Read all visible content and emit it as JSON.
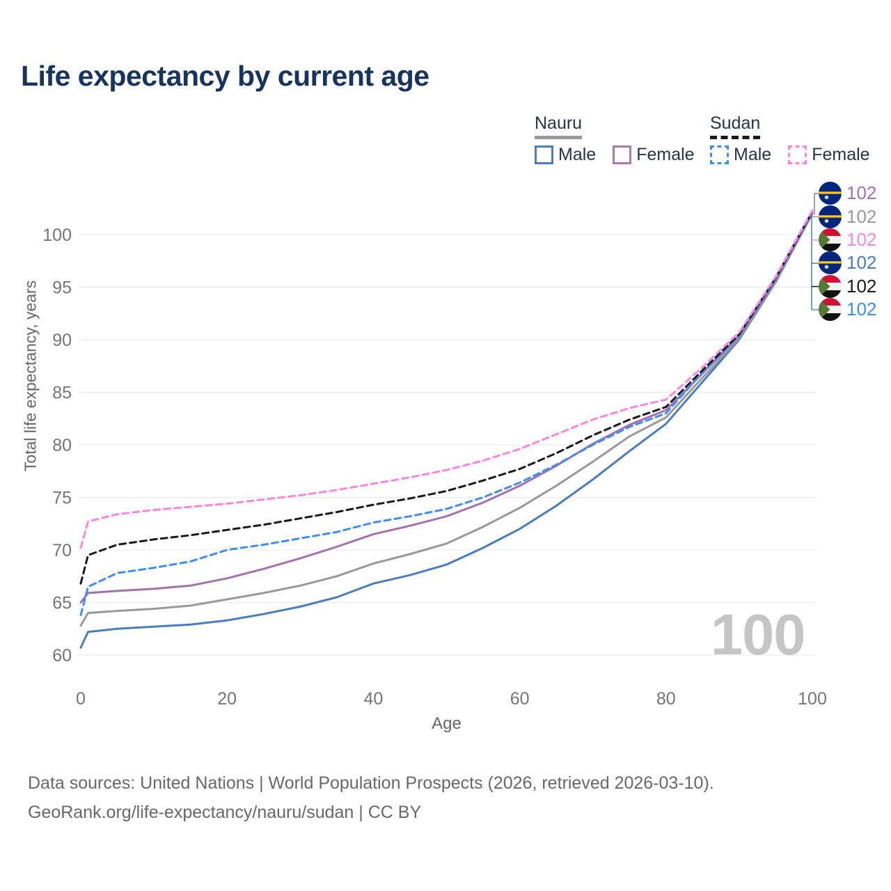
{
  "title": "Life expectancy by current age",
  "legend": {
    "groups": [
      {
        "label": "Nauru",
        "underline_style": "solid",
        "underline_color": "#999999",
        "items": [
          {
            "label": "Male",
            "color": "#4a7cc0",
            "dashed": false
          },
          {
            "label": "Female",
            "color": "#b077b3",
            "dashed": false
          }
        ]
      },
      {
        "label": "Sudan",
        "underline_style": "dashed",
        "underline_color": "#1a1a1a",
        "items": [
          {
            "label": "Male",
            "color": "#3d8ef5",
            "dashed": true
          },
          {
            "label": "Female",
            "color": "#ff85e0",
            "dashed": true
          }
        ]
      }
    ]
  },
  "chart_data": {
    "type": "line",
    "title": "Life expectancy by current age",
    "xlabel": "Age",
    "ylabel": "Total life expectancy, years",
    "xticks": [
      0,
      20,
      40,
      60,
      80,
      100
    ],
    "yticks": [
      60,
      65,
      70,
      75,
      80,
      85,
      90,
      95,
      100
    ],
    "xlim": [
      0,
      100
    ],
    "ylim": [
      58.5,
      103
    ],
    "grid": "horizontal",
    "hover_age_label": "100",
    "x": [
      0,
      1,
      5,
      10,
      15,
      20,
      25,
      30,
      35,
      40,
      45,
      50,
      55,
      60,
      65,
      70,
      75,
      80,
      85,
      90,
      95,
      100
    ],
    "series": [
      {
        "id": "nauru-male",
        "name": "Nauru Male",
        "country": "Nauru",
        "sex": "Male",
        "flag": "nauru-flag",
        "color": "#4a7cc0",
        "dashed": false,
        "end_label": "102",
        "values": [
          60.7,
          62.2,
          62.5,
          62.7,
          62.9,
          63.3,
          63.9,
          64.6,
          65.5,
          66.8,
          67.6,
          68.6,
          70.2,
          72.0,
          74.2,
          76.7,
          79.4,
          82.0,
          86.0,
          90.0,
          95.5,
          102.0
        ]
      },
      {
        "id": "nauru-total",
        "name": "Nauru",
        "country": "Nauru",
        "sex": "Both",
        "flag": "nauru-flag",
        "color": "#999999",
        "dashed": false,
        "end_label": "102",
        "values": [
          62.8,
          64.0,
          64.2,
          64.4,
          64.7,
          65.3,
          65.9,
          66.6,
          67.5,
          68.7,
          69.6,
          70.6,
          72.2,
          74.0,
          76.1,
          78.4,
          80.8,
          82.6,
          86.4,
          90.1,
          95.6,
          102.0
        ]
      },
      {
        "id": "nauru-female",
        "name": "Nauru Female",
        "country": "Nauru",
        "sex": "Female",
        "flag": "nauru-flag",
        "color": "#a86fae",
        "dashed": false,
        "end_label": "102",
        "values": [
          65.0,
          65.9,
          66.1,
          66.3,
          66.6,
          67.3,
          68.2,
          69.2,
          70.3,
          71.5,
          72.3,
          73.2,
          74.5,
          76.1,
          78.0,
          80.1,
          81.9,
          83.3,
          86.8,
          90.3,
          95.7,
          102.1
        ]
      },
      {
        "id": "sudan-male",
        "name": "Sudan Male",
        "country": "Sudan",
        "sex": "Male",
        "flag": "sudan-flag",
        "color": "#3d8ef5",
        "dashed": true,
        "end_label": "102",
        "values": [
          63.8,
          66.5,
          67.8,
          68.3,
          68.9,
          70.0,
          70.5,
          71.1,
          71.7,
          72.6,
          73.2,
          73.9,
          75.0,
          76.4,
          78.1,
          80.0,
          81.7,
          83.0,
          86.9,
          90.4,
          95.8,
          102.1
        ]
      },
      {
        "id": "sudan-total",
        "name": "Sudan",
        "country": "Sudan",
        "sex": "Both",
        "flag": "sudan-flag",
        "color": "#1a1a1a",
        "dashed": true,
        "end_label": "102",
        "values": [
          66.8,
          69.5,
          70.5,
          71.0,
          71.4,
          71.9,
          72.4,
          73.0,
          73.6,
          74.3,
          74.9,
          75.6,
          76.6,
          77.7,
          79.2,
          80.9,
          82.4,
          83.6,
          87.1,
          90.5,
          95.9,
          102.2
        ]
      },
      {
        "id": "sudan-female",
        "name": "Sudan Female",
        "country": "Sudan",
        "sex": "Female",
        "flag": "sudan-flag",
        "color": "#ff85e0",
        "dashed": true,
        "end_label": "102",
        "values": [
          70.2,
          72.7,
          73.4,
          73.8,
          74.1,
          74.4,
          74.8,
          75.2,
          75.7,
          76.3,
          76.9,
          77.6,
          78.5,
          79.6,
          81.0,
          82.4,
          83.5,
          84.3,
          87.4,
          90.7,
          96.0,
          102.3
        ]
      }
    ],
    "end_label_order": [
      "nauru-female",
      "nauru-total",
      "sudan-female",
      "nauru-male",
      "sudan-total",
      "sudan-male"
    ],
    "legend_position": "top-right"
  },
  "footer": {
    "line1": "Data sources: United Nations | World Population Prospects (2026, retrieved 2026-03-10).",
    "line2": "GeoRank.org/life-expectancy/nauru/sudan | CC BY"
  }
}
